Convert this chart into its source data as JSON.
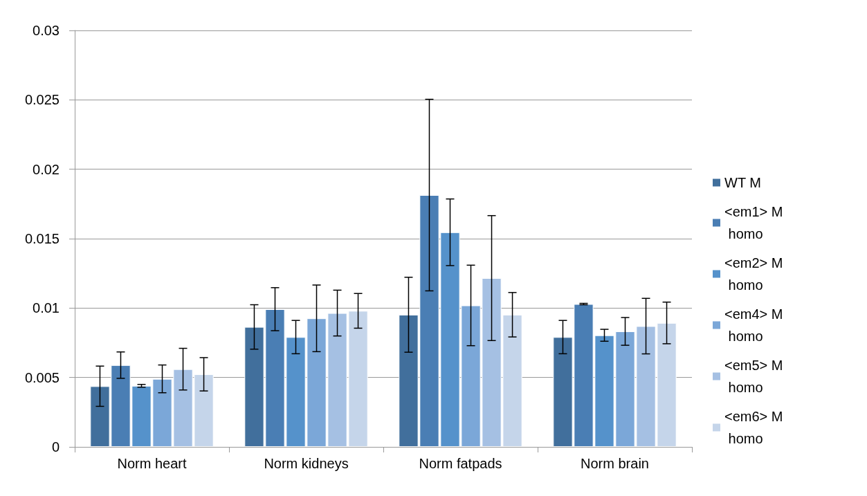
{
  "chart_data": {
    "type": "bar",
    "categories": [
      "Norm heart",
      "Norm kidneys",
      "Norm fatpads",
      "Norm brain"
    ],
    "series": [
      {
        "name": "WT M",
        "color": "#416f9c",
        "values": [
          0.00437,
          0.00864,
          0.00952,
          0.00791
        ],
        "errors": [
          0.00145,
          0.0016,
          0.0027,
          0.0012
        ]
      },
      {
        "name": "<em1> M homo",
        "color": "#4a7eb4",
        "values": [
          0.00589,
          0.00992,
          0.01814,
          0.01029
        ],
        "errors": [
          0.00095,
          0.00155,
          0.0069,
          5e-05
        ]
      },
      {
        "name": "<em2> M homo",
        "color": "#5592cb",
        "values": [
          0.0044,
          0.00791,
          0.01546,
          0.00804
        ],
        "errors": [
          0.0001,
          0.0012,
          0.0024,
          0.00043
        ]
      },
      {
        "name": "<em4> M homo",
        "color": "#7ba7d8",
        "values": [
          0.0049,
          0.00926,
          0.01019,
          0.00832
        ],
        "errors": [
          0.001,
          0.0024,
          0.0029,
          0.001
        ]
      },
      {
        "name": "<em5> M homo",
        "color": "#a5c0e3",
        "values": [
          0.0056,
          0.00964,
          0.01216,
          0.0087
        ],
        "errors": [
          0.0015,
          0.00165,
          0.0045,
          0.002
        ]
      },
      {
        "name": "<em6> M homo",
        "color": "#c5d5ea",
        "values": [
          0.00523,
          0.0098,
          0.00952,
          0.00893
        ],
        "errors": [
          0.0012,
          0.00125,
          0.0016,
          0.0015
        ]
      }
    ],
    "ylim": [
      0,
      0.03
    ],
    "yticks": [
      0,
      0.005,
      0.01,
      0.015,
      0.02,
      0.025,
      0.03
    ],
    "grid": "y",
    "legend": "right"
  }
}
